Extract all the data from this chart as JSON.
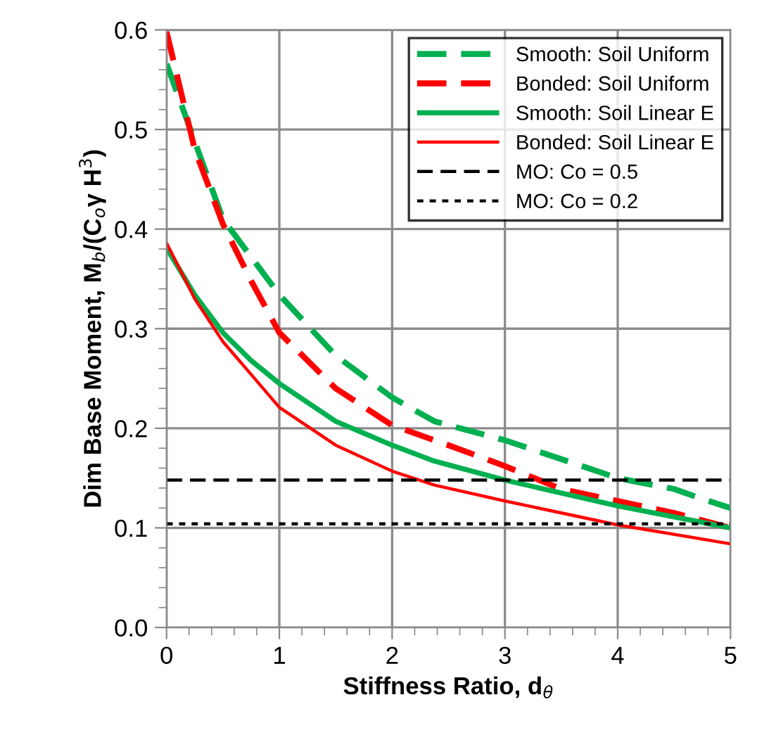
{
  "chart_data": {
    "type": "line",
    "xlabel": "Stiffness Ratio, d$_{θ}$",
    "ylabel": "Dim Base Moment, M$_{b}$/(C$_{o}$γ H$^{3}$)",
    "xlim": [
      0,
      5
    ],
    "ylim": [
      0,
      0.6
    ],
    "xticks": [
      0,
      1,
      2,
      3,
      4,
      5
    ],
    "yticks": [
      {
        "value": 0,
        "label": "0.0"
      },
      0.1,
      0.2,
      0.3,
      0.4,
      0.5,
      0.6
    ],
    "grid": true,
    "legend": "top right",
    "marker": "none",
    "series": [
      {
        "name": "Smooth: Soil Uniform",
        "color": "#00b050",
        "line_style": "dashed",
        "x": [
          0,
          0.5,
          1,
          1.5,
          2,
          2.375,
          3,
          3.5,
          4,
          4.5,
          4.75,
          5
        ],
        "values": [
          0.566,
          0.41,
          0.334,
          0.273,
          0.231,
          0.207,
          0.188,
          0.169,
          0.15,
          0.139,
          0.129,
          0.12
        ]
      },
      {
        "name": "Bonded: Soil Uniform",
        "color": "#ff0000",
        "line_style": "dashed",
        "x": [
          0,
          0.25,
          0.5,
          0.75,
          1,
          1.5,
          2,
          2.5,
          3,
          3.5,
          4,
          4.5,
          5
        ],
        "values": [
          0.598,
          0.48,
          0.405,
          0.348,
          0.296,
          0.24,
          0.203,
          0.183,
          0.162,
          0.139,
          0.127,
          0.115,
          0.1
        ]
      },
      {
        "name": "Smooth: Soil Linear E",
        "color": "#00b050",
        "line_style": "solid",
        "x": [
          0,
          0.25,
          0.5,
          0.75,
          1,
          1.5,
          2,
          2.375,
          3,
          4,
          5
        ],
        "values": [
          0.381,
          0.334,
          0.296,
          0.268,
          0.245,
          0.207,
          0.183,
          0.167,
          0.148,
          0.122,
          0.1
        ]
      },
      {
        "name": "Bonded: Soil Linear E",
        "color": "#ff0000",
        "line_style": "solid",
        "x": [
          0,
          0.25,
          0.5,
          0.75,
          1,
          1.5,
          2,
          2.375,
          3,
          4,
          5
        ],
        "values": [
          0.386,
          0.33,
          0.287,
          0.254,
          0.221,
          0.183,
          0.157,
          0.143,
          0.127,
          0.103,
          0.084
        ]
      },
      {
        "name": "MO: Co = 0.5",
        "color": "#000000",
        "line_style": "dashed",
        "x": [
          0,
          5
        ],
        "values": [
          0.148,
          0.148
        ]
      },
      {
        "name": "MO: Co = 0.2",
        "color": "#000000",
        "line_style": "dotted",
        "x": [
          0,
          5
        ],
        "values": [
          0.104,
          0.104
        ]
      }
    ]
  }
}
